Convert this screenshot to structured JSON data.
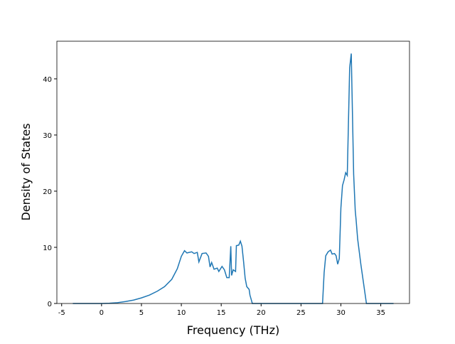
{
  "chart_data": {
    "type": "line",
    "x_label": "Frequency (THz)",
    "y_label": "Density of States",
    "x": [
      -3.6,
      0,
      1,
      2,
      3,
      4,
      5,
      6,
      7,
      7.9,
      8.8,
      9.5,
      10,
      10.4,
      10.7,
      11.3,
      11.6,
      12,
      12.2,
      12.6,
      13.1,
      13.4,
      13.6,
      13.8,
      14.1,
      14.5,
      14.7,
      15.1,
      15.4,
      15.7,
      16.0,
      16.2,
      16.3,
      16.5,
      16.8,
      16.9,
      17.2,
      17.4,
      17.6,
      17.8,
      18.0,
      18.2,
      18.5,
      18.6,
      18.9,
      27.7,
      27.9,
      28.1,
      28.4,
      28.7,
      28.9,
      29.2,
      29.4,
      29.6,
      29.8,
      30.0,
      30.2,
      30.4,
      30.6,
      30.8,
      31.1,
      31.3,
      31.6,
      31.8,
      31.9,
      32.1,
      32.5,
      32.8,
      33.2,
      36.6
    ],
    "series": [
      {
        "color": "#1f77b4",
        "values": [
          0,
          0,
          0.05,
          0.15,
          0.35,
          0.6,
          1.0,
          1.5,
          2.2,
          3.0,
          4.3,
          6.2,
          8.4,
          9.4,
          9.0,
          9.2,
          8.9,
          9.1,
          7.4,
          8.9,
          9.0,
          8.4,
          6.5,
          7.3,
          6.1,
          6.3,
          5.7,
          6.6,
          6.0,
          4.6,
          4.6,
          10.2,
          5.0,
          6.0,
          5.7,
          10.3,
          10.4,
          11.1,
          10.2,
          7.5,
          4.5,
          3.0,
          2.5,
          1.5,
          0,
          0,
          5.5,
          8.5,
          9.2,
          9.5,
          8.8,
          8.9,
          8.5,
          7.0,
          8.0,
          17,
          21,
          22,
          23.3,
          22.8,
          42,
          44.5,
          23,
          16.5,
          15,
          11.5,
          7,
          4,
          0,
          0
        ]
      }
    ],
    "xlim": [
      -5.6,
      38.6
    ],
    "ylim": [
      0,
      46.7
    ],
    "xticks": [
      -5,
      0,
      5,
      10,
      15,
      20,
      25,
      30,
      35
    ],
    "yticks": [
      0,
      10,
      20,
      30,
      40
    ]
  }
}
